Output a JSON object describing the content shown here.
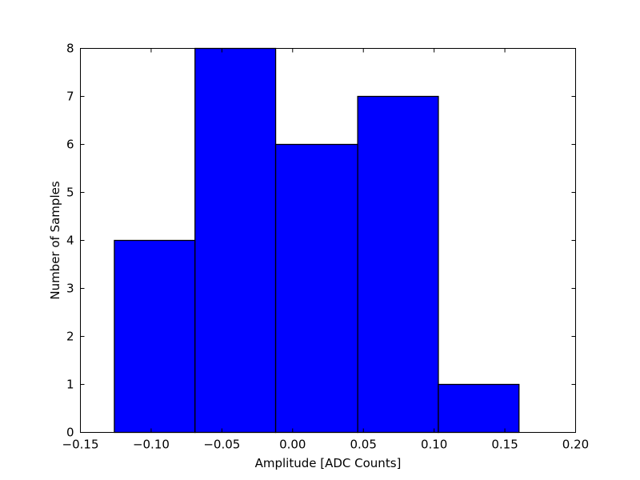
{
  "chart_data": {
    "type": "bar",
    "subtype": "histogram",
    "title": "",
    "xlabel": "Amplitude [ADC Counts]",
    "ylabel": "Number of Samples",
    "xlim": [
      -0.15,
      0.2
    ],
    "ylim": [
      0,
      8
    ],
    "x_ticks": [
      "−0.15",
      "−0.10",
      "−0.05",
      "0.00",
      "0.05",
      "0.10",
      "0.15",
      "0.20"
    ],
    "y_ticks": [
      "0",
      "1",
      "2",
      "3",
      "4",
      "5",
      "6",
      "7",
      "8"
    ],
    "bins": [
      {
        "start": -0.126,
        "end": -0.069,
        "value": 4
      },
      {
        "start": -0.069,
        "end": -0.012,
        "value": 8
      },
      {
        "start": -0.012,
        "end": 0.046,
        "value": 6
      },
      {
        "start": 0.046,
        "end": 0.103,
        "value": 7
      },
      {
        "start": 0.103,
        "end": 0.16,
        "value": 1
      }
    ],
    "bar_color": "#0000ff",
    "edge_color": "#000000",
    "grid": false,
    "legend": "none"
  }
}
